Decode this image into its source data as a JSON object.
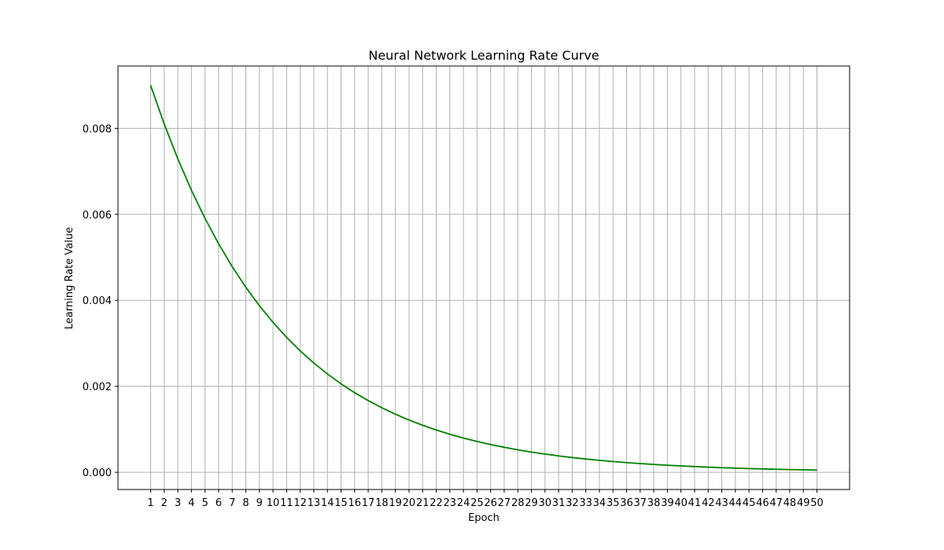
{
  "chart_data": {
    "type": "line",
    "title": "Neural Network Learning Rate Curve",
    "xlabel": "Epoch",
    "ylabel": "Learning Rate Value",
    "x": [
      1,
      2,
      3,
      4,
      5,
      6,
      7,
      8,
      9,
      10,
      11,
      12,
      13,
      14,
      15,
      16,
      17,
      18,
      19,
      20,
      21,
      22,
      23,
      24,
      25,
      26,
      27,
      28,
      29,
      30,
      31,
      32,
      33,
      34,
      35,
      36,
      37,
      38,
      39,
      40,
      41,
      42,
      43,
      44,
      45,
      46,
      47,
      48,
      49,
      50
    ],
    "xticks": [
      "1",
      "2",
      "3",
      "4",
      "5",
      "6",
      "7",
      "8",
      "9",
      "10",
      "11",
      "12",
      "13",
      "14",
      "15",
      "16",
      "17",
      "18",
      "19",
      "20",
      "21",
      "22",
      "23",
      "24",
      "25",
      "26",
      "27",
      "28",
      "29",
      "30",
      "31",
      "32",
      "33",
      "34",
      "35",
      "36",
      "37",
      "38",
      "39",
      "40",
      "41",
      "42",
      "43",
      "44",
      "45",
      "46",
      "47",
      "48",
      "49",
      "50"
    ],
    "yticks": [
      "0.000",
      "0.002",
      "0.004",
      "0.006",
      "0.008"
    ],
    "ytick_values": [
      0,
      0.002,
      0.004,
      0.006,
      0.008
    ],
    "xlim": [
      -1.4,
      52.4
    ],
    "ylim": [
      -0.0004,
      0.00945
    ],
    "grid": true,
    "line_color": "#008000",
    "grid_color": "#b0b0b0",
    "series": [
      {
        "values": [
          0.009,
          0.0081,
          0.00729,
          0.006561,
          0.0059049,
          0.00531441,
          0.004782969,
          0.0043046721,
          0.00387420489,
          0.003486784401,
          0.0031381059609,
          0.00282429536481,
          0.002541865828329,
          0.0022876792454961,
          0.00205891132094649,
          0.001853020188851841,
          0.0016677181699666567,
          0.0015009463529699913,
          0.001350851717672992,
          0.001215766545905693,
          0.0010941898913151237,
          0.0009847709021836113,
          0.00088629381196525,
          0.0007976644307687251,
          0.0007178979876918526,
          0.0006461081889226673,
          0.0005814973700304006,
          0.0005233476330273605,
          0.00047101286972462444,
          0.000423911582752162,
          0.0003815204244769458,
          0.0003433683820292512,
          0.0003090315438263261,
          0.0002781283894436935,
          0.0002503155505993241,
          0.0002252839955393917,
          0.0002027555959854526,
          0.0001824800363869073,
          0.0001642320327482166,
          0.0001478088294733949,
          0.0001330279465260554,
          0.0001197251518734499,
          0.0001077526366861049,
          9.69773730174944e-05,
          8.7279635715745e-05,
          7.85516721441705e-05,
          7.06965049297534e-05,
          6.36268544367781e-05,
          5.72641689931003e-05,
          5.15377520937903e-05
        ]
      }
    ]
  }
}
